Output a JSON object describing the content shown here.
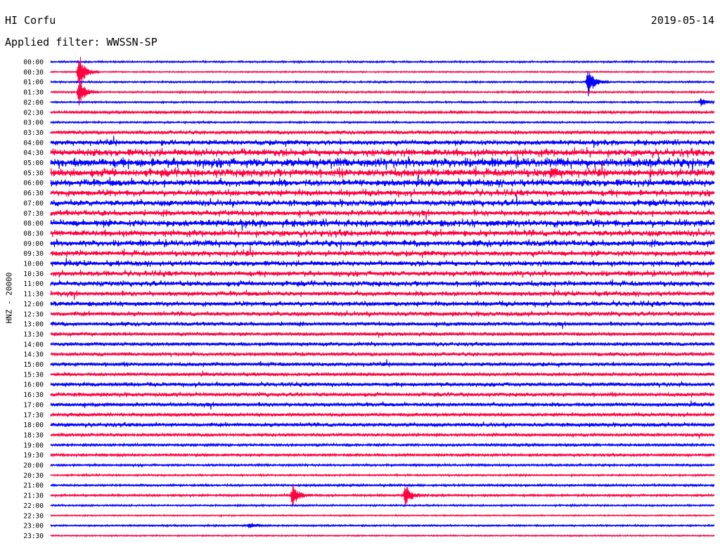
{
  "header": {
    "station": "HI Corfu",
    "date": "2019-05-14",
    "filter": "Applied filter: WWSSN-SP"
  },
  "chart_data": {
    "type": "line",
    "title": "HI Corfu",
    "ylabel": "HNZ - 20000",
    "row_labels": [
      "00:00",
      "00:30",
      "01:00",
      "01:30",
      "02:00",
      "02:30",
      "03:00",
      "03:30",
      "04:00",
      "04:30",
      "05:00",
      "05:30",
      "06:00",
      "06:30",
      "07:00",
      "07:30",
      "08:00",
      "08:30",
      "09:00",
      "09:30",
      "10:00",
      "10:30",
      "11:00",
      "11:30",
      "12:00",
      "12:30",
      "13:00",
      "13:30",
      "14:00",
      "14:30",
      "15:00",
      "15:30",
      "16:00",
      "16:30",
      "17:00",
      "17:30",
      "18:00",
      "18:30",
      "19:00",
      "19:30",
      "20:00",
      "20:30",
      "21:00",
      "21:30",
      "22:00",
      "22:30",
      "23:00",
      "23:30"
    ],
    "trace_colors": [
      "#0000ff",
      "#ff0040"
    ],
    "activity_level": [
      0.1,
      0.05,
      0.1,
      0.1,
      0.1,
      0.2,
      0.1,
      0.3,
      0.5,
      0.7,
      0.9,
      0.8,
      0.7,
      0.6,
      0.6,
      0.55,
      0.7,
      0.6,
      0.6,
      0.55,
      0.5,
      0.5,
      0.5,
      0.45,
      0.45,
      0.4,
      0.35,
      0.3,
      0.3,
      0.3,
      0.35,
      0.3,
      0.35,
      0.35,
      0.35,
      0.3,
      0.35,
      0.25,
      0.2,
      0.2,
      0.15,
      0.1,
      0.15,
      0.15,
      0.1,
      0.05,
      0.1,
      0.05
    ],
    "events": [
      {
        "row": 1,
        "time_fraction": 0.043,
        "amplitude": 5
      },
      {
        "row": 3,
        "time_fraction": 0.043,
        "amplitude": 4
      },
      {
        "row": 2,
        "time_fraction": 0.81,
        "amplitude": 4
      },
      {
        "row": 4,
        "time_fraction": 0.98,
        "amplitude": 1
      },
      {
        "row": 43,
        "time_fraction": 0.365,
        "amplitude": 3
      },
      {
        "row": 43,
        "time_fraction": 0.535,
        "amplitude": 3
      },
      {
        "row": 11,
        "time_fraction": 0.755,
        "amplitude": 1
      },
      {
        "row": 46,
        "time_fraction": 0.3,
        "amplitude": 1
      }
    ]
  }
}
